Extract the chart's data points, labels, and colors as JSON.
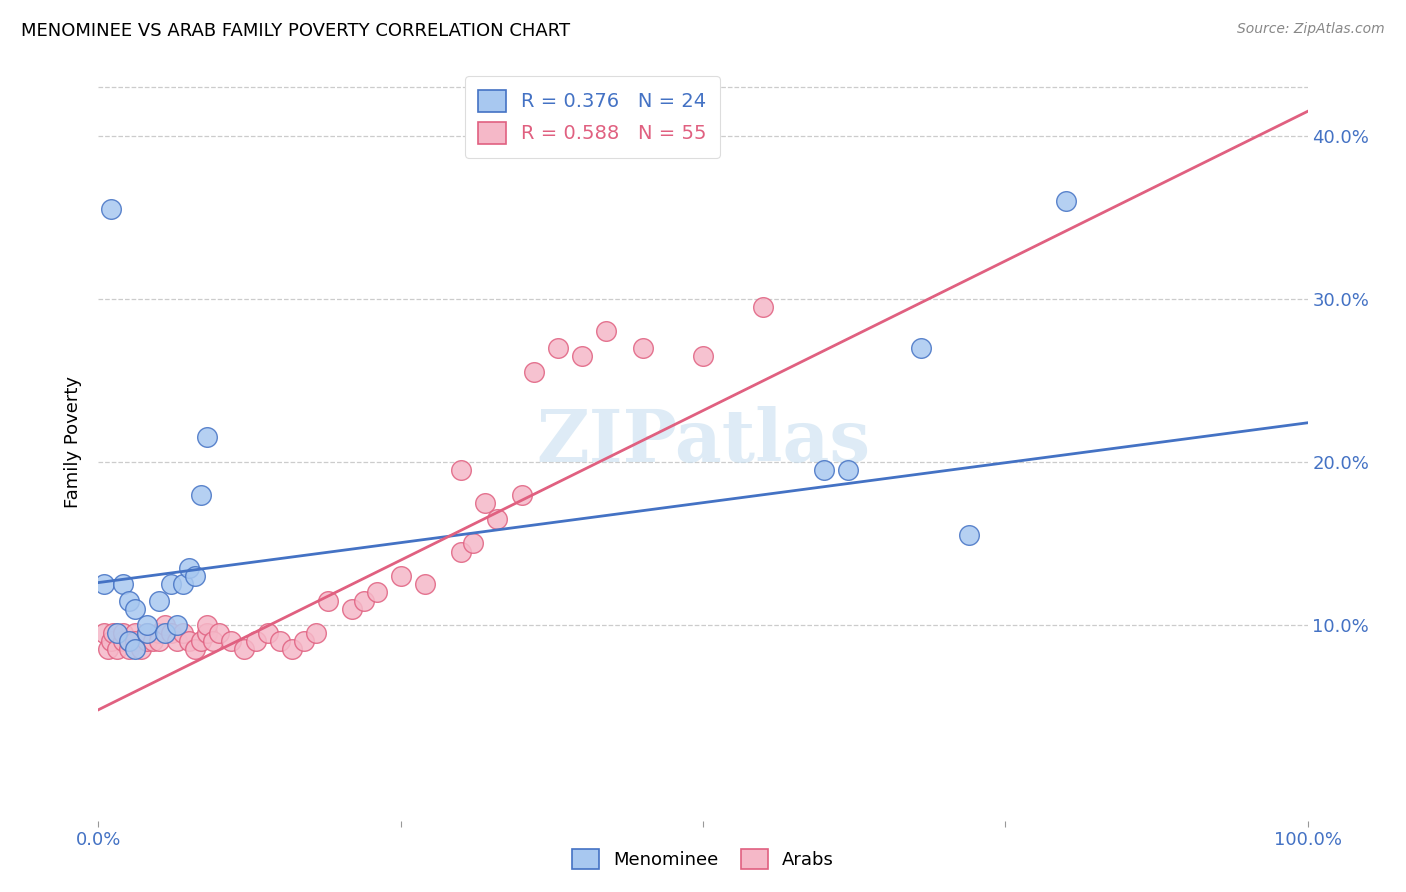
{
  "title": "MENOMINEE VS ARAB FAMILY POVERTY CORRELATION CHART",
  "source": "Source: ZipAtlas.com",
  "ylabel": "Family Poverty",
  "ytick_labels": [
    "10.0%",
    "20.0%",
    "30.0%",
    "40.0%"
  ],
  "ytick_values": [
    0.1,
    0.2,
    0.3,
    0.4
  ],
  "xlim": [
    0.0,
    1.0
  ],
  "ylim": [
    -0.02,
    0.445
  ],
  "menominee_color": "#a8c8f0",
  "arab_color": "#f5b8c8",
  "line_menominee_color": "#4472c4",
  "line_arab_color": "#e06080",
  "watermark_text": "ZIPatlas",
  "menominee_x": [
    0.005,
    0.01,
    0.015,
    0.02,
    0.025,
    0.025,
    0.03,
    0.03,
    0.04,
    0.04,
    0.05,
    0.055,
    0.06,
    0.065,
    0.07,
    0.075,
    0.08,
    0.085,
    0.09,
    0.6,
    0.62,
    0.68,
    0.72,
    0.8
  ],
  "menominee_y": [
    0.125,
    0.355,
    0.095,
    0.125,
    0.09,
    0.115,
    0.085,
    0.11,
    0.095,
    0.1,
    0.115,
    0.095,
    0.125,
    0.1,
    0.125,
    0.135,
    0.13,
    0.18,
    0.215,
    0.195,
    0.195,
    0.27,
    0.155,
    0.36
  ],
  "arab_x": [
    0.005,
    0.008,
    0.01,
    0.012,
    0.015,
    0.02,
    0.02,
    0.025,
    0.025,
    0.03,
    0.03,
    0.035,
    0.04,
    0.04,
    0.045,
    0.05,
    0.05,
    0.055,
    0.06,
    0.065,
    0.07,
    0.075,
    0.08,
    0.085,
    0.09,
    0.09,
    0.095,
    0.1,
    0.11,
    0.12,
    0.13,
    0.14,
    0.15,
    0.16,
    0.17,
    0.18,
    0.19,
    0.21,
    0.22,
    0.23,
    0.25,
    0.27,
    0.3,
    0.3,
    0.31,
    0.32,
    0.33,
    0.35,
    0.36,
    0.38,
    0.4,
    0.42,
    0.45,
    0.5,
    0.55
  ],
  "arab_y": [
    0.095,
    0.085,
    0.09,
    0.095,
    0.085,
    0.09,
    0.095,
    0.085,
    0.09,
    0.095,
    0.09,
    0.085,
    0.09,
    0.095,
    0.09,
    0.095,
    0.09,
    0.1,
    0.095,
    0.09,
    0.095,
    0.09,
    0.085,
    0.09,
    0.095,
    0.1,
    0.09,
    0.095,
    0.09,
    0.085,
    0.09,
    0.095,
    0.09,
    0.085,
    0.09,
    0.095,
    0.115,
    0.11,
    0.115,
    0.12,
    0.13,
    0.125,
    0.145,
    0.195,
    0.15,
    0.175,
    0.165,
    0.18,
    0.255,
    0.27,
    0.265,
    0.28,
    0.27,
    0.265,
    0.295
  ],
  "menominee_line_x": [
    0.0,
    1.0
  ],
  "menominee_line_y": [
    0.126,
    0.224
  ],
  "arab_line_x": [
    0.0,
    1.0
  ],
  "arab_line_y": [
    0.048,
    0.415
  ]
}
